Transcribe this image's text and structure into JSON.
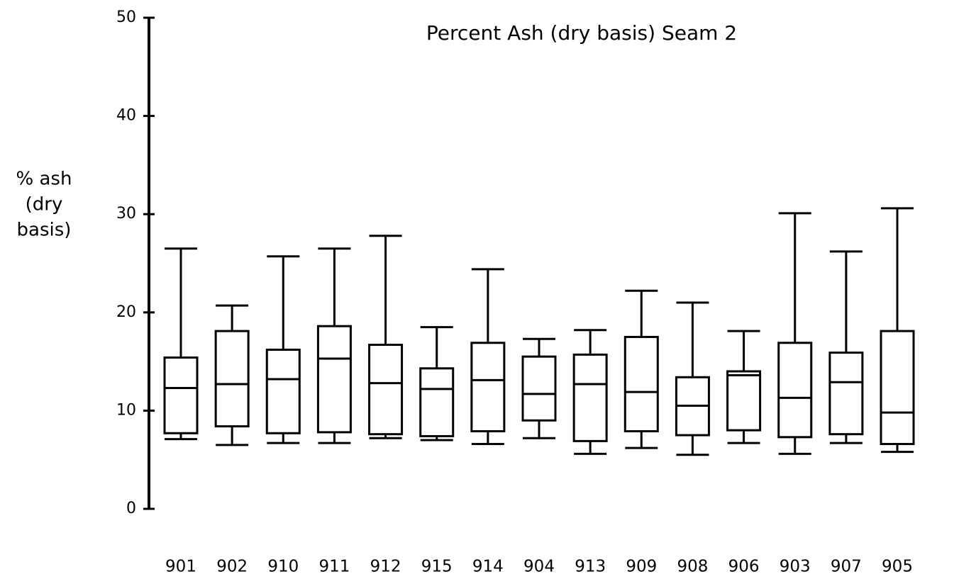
{
  "chart_data": {
    "type": "box",
    "title": "Percent Ash (dry basis) Seam  2",
    "ylabel": [
      "% ash",
      "(dry",
      "basis)"
    ],
    "categories": [
      "901",
      "902",
      "910",
      "911",
      "912",
      "915",
      "914",
      "904",
      "913",
      "909",
      "908",
      "906",
      "903",
      "907",
      "905"
    ],
    "low": [
      7.1,
      6.5,
      6.7,
      6.7,
      7.2,
      7.0,
      6.6,
      7.2,
      5.6,
      6.2,
      5.5,
      6.7,
      5.6,
      6.7,
      5.8
    ],
    "q1": [
      7.7,
      8.4,
      7.7,
      7.8,
      7.6,
      7.4,
      7.9,
      9.0,
      6.9,
      7.9,
      7.5,
      8.0,
      7.3,
      7.6,
      6.6
    ],
    "median": [
      12.3,
      12.7,
      13.2,
      15.3,
      12.8,
      12.2,
      13.1,
      11.7,
      12.7,
      11.9,
      10.5,
      13.6,
      11.3,
      12.9,
      9.8
    ],
    "q3": [
      15.4,
      18.1,
      16.2,
      18.6,
      16.7,
      14.3,
      16.9,
      15.5,
      15.7,
      17.5,
      13.4,
      14.0,
      16.9,
      15.9,
      18.1
    ],
    "high": [
      26.5,
      20.7,
      25.7,
      26.5,
      27.8,
      18.5,
      24.4,
      17.3,
      18.2,
      22.2,
      21.0,
      18.1,
      30.1,
      26.2,
      30.6
    ],
    "color": "#000000",
    "ylim": [
      0,
      50
    ],
    "yticks": [
      0,
      10,
      20,
      30,
      40,
      50
    ],
    "grid": false
  }
}
